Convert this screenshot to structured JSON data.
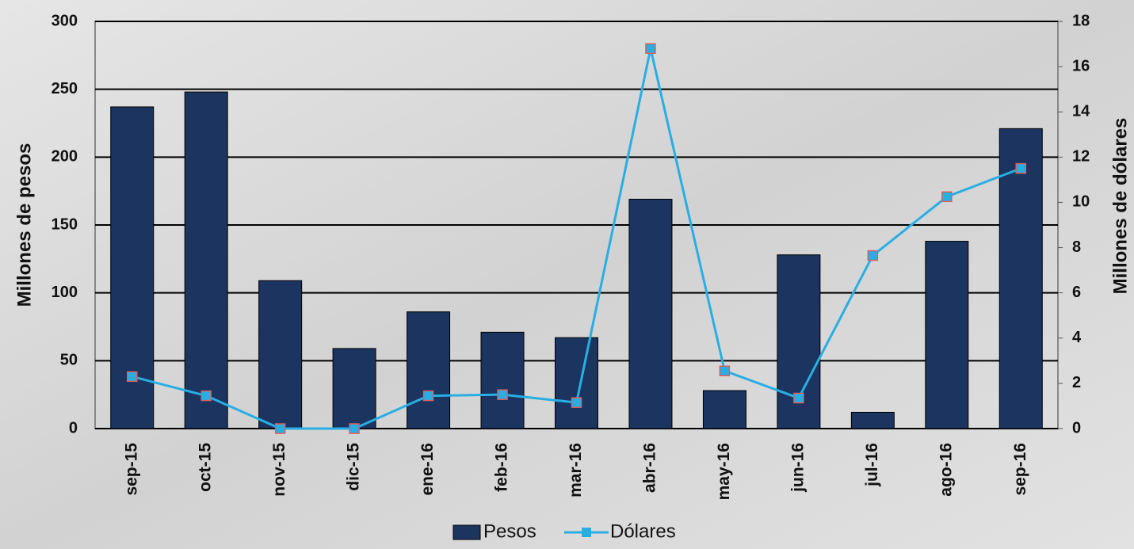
{
  "chart_data": {
    "type": "bar-line",
    "categories": [
      "sep-15",
      "oct-15",
      "nov-15",
      "dic-15",
      "ene-16",
      "feb-16",
      "mar-16",
      "abr-16",
      "may-16",
      "jun-16",
      "jul-16",
      "ago-16",
      "sep-16"
    ],
    "series": [
      {
        "name": "Pesos",
        "color": "#1b3560",
        "values": [
          237,
          248,
          109,
          59,
          86,
          71,
          67,
          169,
          28,
          128,
          12,
          138,
          221
        ]
      },
      {
        "name": "Dólares",
        "color": "#29aee3",
        "axis": "y2",
        "values": [
          2.3,
          1.45,
          0,
          0,
          1.45,
          1.5,
          1.15,
          16.8,
          2.55,
          1.35,
          7.65,
          10.25,
          11.5
        ]
      }
    ],
    "ylabel": "Millones de pesos",
    "y2label": "Millones de dólares",
    "ylim": [
      0,
      300
    ],
    "yticks": [
      0,
      50,
      100,
      150,
      200,
      250,
      300
    ],
    "y2lim": [
      0,
      18
    ],
    "y2ticks": [
      0,
      2,
      4,
      6,
      8,
      10,
      12,
      14,
      16,
      18
    ],
    "grid": true
  }
}
